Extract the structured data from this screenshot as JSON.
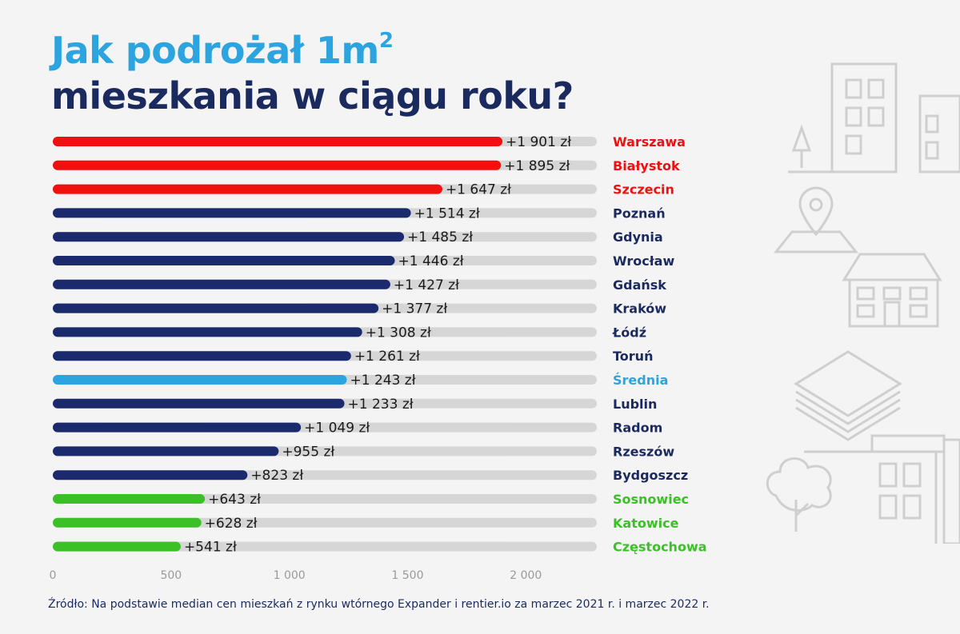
{
  "title": {
    "line1": "Jak podrożał 1m",
    "superscript": "2",
    "line2": "mieszkania w ciągu roku?"
  },
  "source": "Źródło: Na podstawie median cen mieszkań z rynku wtórnego Expander i rentier.io za marzec 2021 r. i marzec 2022 r.",
  "colors": {
    "top": "#f01010",
    "middle": "#1a2a6c",
    "average": "#2ba4e0",
    "bottom": "#3cc028",
    "track": "#d6d6d6",
    "title_dark": "#1a2a5e"
  },
  "chart_data": {
    "type": "bar",
    "orientation": "horizontal",
    "categories": [
      "Warszawa",
      "Białystok",
      "Szczecin",
      "Poznań",
      "Gdynia",
      "Wrocław",
      "Gdańsk",
      "Kraków",
      "Łódź",
      "Toruń",
      "Średnia",
      "Lublin",
      "Radom",
      "Rzeszów",
      "Bydgoszcz",
      "Sosnowiec",
      "Katowice",
      "Częstochowa"
    ],
    "values": [
      1901,
      1895,
      1647,
      1514,
      1485,
      1446,
      1427,
      1377,
      1308,
      1261,
      1243,
      1233,
      1049,
      955,
      823,
      643,
      628,
      541
    ],
    "value_labels": [
      "+1 901 zł",
      "+1 895 zł",
      "+1 647 zł",
      "+1 514 zł",
      "+1 485 zł",
      "+1 446 zł",
      "+1 427 zł",
      "+1 377 zł",
      "+1 308 zł",
      "+1 261 zł",
      "+1 243 zł",
      "+1 233 zł",
      "+1 049 zł",
      "+955 zł",
      "+823 zł",
      "+643 zł",
      "+628 zł",
      "+541 zł"
    ],
    "groups": [
      "top",
      "top",
      "top",
      "middle",
      "middle",
      "middle",
      "middle",
      "middle",
      "middle",
      "middle",
      "average",
      "middle",
      "middle",
      "middle",
      "middle",
      "bottom",
      "bottom",
      "bottom"
    ],
    "xlim": [
      0,
      2300
    ],
    "x_ticks": [
      0,
      500,
      1000,
      1500,
      2000
    ],
    "x_tick_labels": [
      "0",
      "500",
      "1 000",
      "1 500",
      "2 000"
    ]
  }
}
